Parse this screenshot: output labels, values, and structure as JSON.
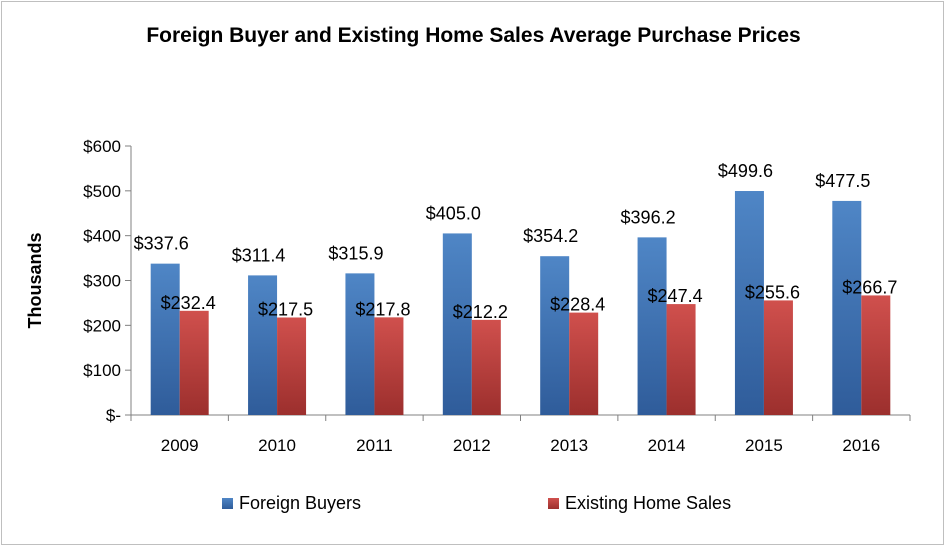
{
  "chart_data": {
    "type": "bar",
    "title": "Foreign Buyer and Existing Home Sales Average Purchase Prices",
    "ylabel": "Thousands",
    "xlabel": "",
    "categories": [
      "2009",
      "2010",
      "2011",
      "2012",
      "2013",
      "2014",
      "2015",
      "2016"
    ],
    "series": [
      {
        "name": "Foreign Buyers",
        "color": "#4a7ebb",
        "values": [
          337.6,
          311.4,
          315.9,
          405.0,
          354.2,
          396.2,
          499.6,
          477.5
        ],
        "labels": [
          "$337.6",
          "$311.4",
          "$315.9",
          "$405.0",
          "$354.2",
          "$396.2",
          "$499.6",
          "$477.5"
        ]
      },
      {
        "name": "Existing Home Sales",
        "color": "#be4b48",
        "values": [
          232.4,
          217.5,
          217.8,
          212.2,
          228.4,
          247.4,
          255.6,
          266.7
        ],
        "labels": [
          "$232.4",
          "$217.5",
          "$217.8",
          "$212.2",
          "$228.4",
          "$247.4",
          "$255.6",
          "$266.7"
        ]
      }
    ],
    "ylim": [
      0,
      600
    ],
    "yticks": [
      0,
      100,
      200,
      300,
      400,
      500,
      600
    ],
    "ytick_labels": [
      "$-",
      "$100",
      "$200",
      "$300",
      "$400",
      "$500",
      "$600"
    ],
    "grid": false,
    "legend_position": "bottom"
  }
}
